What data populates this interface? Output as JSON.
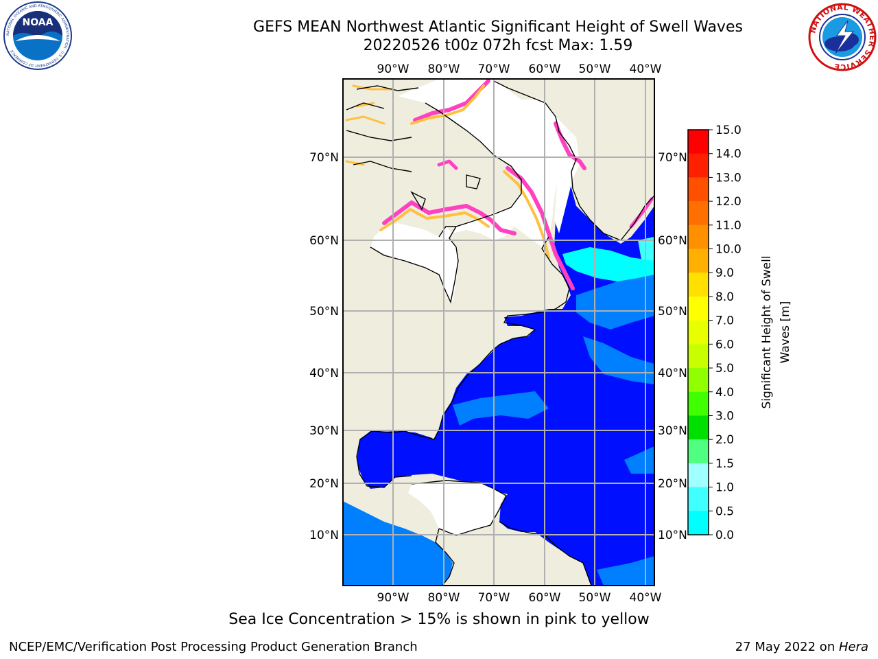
{
  "title": {
    "line1": "GEFS MEAN Northwest Atlantic Significant Height of Swell Waves",
    "line2": "20220526 t00z 072h fcst   Max: 1.59"
  },
  "logos": {
    "noaa_text": "NOAA",
    "noaa_ring_text": "NATIONAL OCEANIC AND ATMOSPHERIC ADMINISTRATION · U.S. DEPARTMENT OF COMMERCE",
    "nws_ring_text": "NATIONAL WEATHER SERVICE"
  },
  "map": {
    "lon_labels": [
      "90°W",
      "80°W",
      "70°W",
      "60°W",
      "50°W",
      "40°W"
    ],
    "lat_labels": [
      "70°N",
      "60°N",
      "50°N",
      "40°N",
      "30°N",
      "20°N",
      "10°N"
    ],
    "colors": {
      "land": "#efedde",
      "ice_region": "#ffffff",
      "ocean_low": "#0010ff",
      "ocean_mid": "#0080ff",
      "ocean_high": "#00ffff",
      "ice_edge": "#ff40c0",
      "ice_edge_warm": "#ffc040",
      "grid": "#b0b0b0"
    }
  },
  "colorbar": {
    "label_line1": "Significant Height of Swell",
    "label_line2": "Waves [m]",
    "ticks": [
      "15.0",
      "14.0",
      "13.0",
      "12.0",
      "11.0",
      "10.0",
      "9.0",
      "8.0",
      "7.0",
      "6.0",
      "5.0",
      "4.0",
      "3.0",
      "2.0",
      "1.5",
      "1.0",
      "0.5",
      "0.0"
    ],
    "colors": [
      "#ff0000",
      "#ff2000",
      "#ff5000",
      "#ff7000",
      "#ff9000",
      "#ffb000",
      "#ffe000",
      "#ffff00",
      "#e8ff00",
      "#c8ff00",
      "#90ff00",
      "#40ff00",
      "#00e000",
      "#50ff80",
      "#a0ffff",
      "#40ffff",
      "#00ffff",
      "#0080ff",
      "#0010ff"
    ]
  },
  "note": "Sea Ice Concentration > 15% is shown in pink to yellow",
  "footer": {
    "left": "NCEP/EMC/Verification Post Processing Product Generation Branch",
    "right_prefix": "27 May 2022 on ",
    "right_machine": "Hera"
  }
}
